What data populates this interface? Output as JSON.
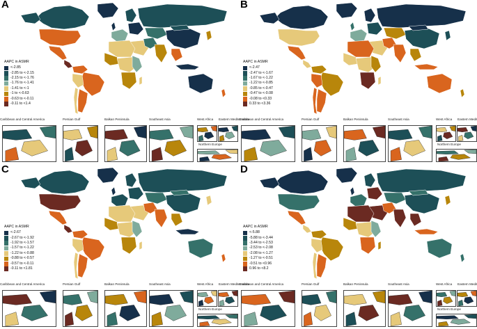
{
  "figure": {
    "legend_title": "AAPC in ASMR",
    "inset_labels": [
      "Caribbean and Central America",
      "Persian Gulf",
      "Balkan Peninsula",
      "Southeast Asia",
      "West Africa",
      "Eastern Mediterranea",
      "Northern Europe"
    ],
    "colors": {
      "c1": "#16304a",
      "c2": "#1d4f57",
      "c3": "#35716a",
      "c4": "#7fab9c",
      "c5": "#e6c97a",
      "c6": "#b8860b",
      "c7": "#d9651e",
      "c8": "#6b2a22"
    }
  },
  "panels": [
    {
      "letter": "A",
      "legend": [
        "<-2.85",
        "-2.85 to <-2.15",
        "-2.15 to <-1.76",
        "-1.76 to <-1.41",
        "-1.41 to <-1",
        "-1 to <-0.63",
        "-0.63 to <-0.11",
        "-0.11 to <1.4"
      ]
    },
    {
      "letter": "B",
      "legend": [
        "<-2.47",
        "-2.47 to <-1.67",
        "-1.67 to <-1.22",
        "-1.22 to <-0.85",
        "-0.85 to <-0.47",
        "-0.47 to <-0.08",
        "-0.08 to <0.33",
        "0.33 to <3.36"
      ]
    },
    {
      "letter": "C",
      "legend": [
        "<-2.67",
        "-2.67 to <-1.92",
        "-1.92 to <-1.57",
        "-1.57 to <-1.22",
        "-1.22 to <-0.88",
        "-0.88 to <-0.57",
        "-0.57 to <-0.11",
        "-0.11 to <1.81"
      ]
    },
    {
      "letter": "D",
      "legend": [
        "<-5.88",
        "-5.88 to <-3.44",
        "-3.44 to <-2.53",
        "-2.53 to <-2.08",
        "-2.08 to <-1.27",
        "-1.27 to <-0.51",
        "-0.51 to <0.96",
        "0.96 to <8.2"
      ]
    }
  ]
}
